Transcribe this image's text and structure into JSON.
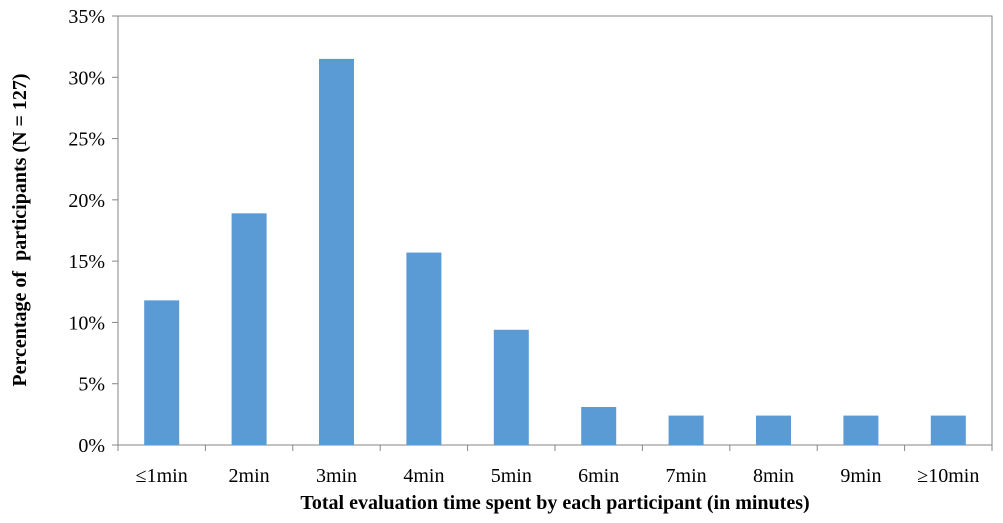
{
  "chart_data": {
    "type": "bar",
    "title": "",
    "xlabel": "Total evaluation time spent by each participant (in minutes)",
    "ylabel": "Percentage of  participants (N = 127)",
    "categories": [
      "≤1min",
      "2min",
      "3min",
      "4min",
      "5min",
      "6min",
      "7min",
      "8min",
      "9min",
      "≥10min"
    ],
    "values": [
      11.8,
      18.9,
      31.5,
      15.7,
      9.4,
      3.1,
      2.4,
      2.4,
      2.4,
      2.4
    ],
    "ylim": [
      0,
      35
    ],
    "yticks": [
      0,
      5,
      10,
      15,
      20,
      25,
      30,
      35
    ],
    "ytick_labels": [
      "0%",
      "5%",
      "10%",
      "15%",
      "20%",
      "25%",
      "30%",
      "35%"
    ],
    "grid": false,
    "legend": "none",
    "bar_color": "#5b9bd5",
    "axis_color": "#868686"
  }
}
